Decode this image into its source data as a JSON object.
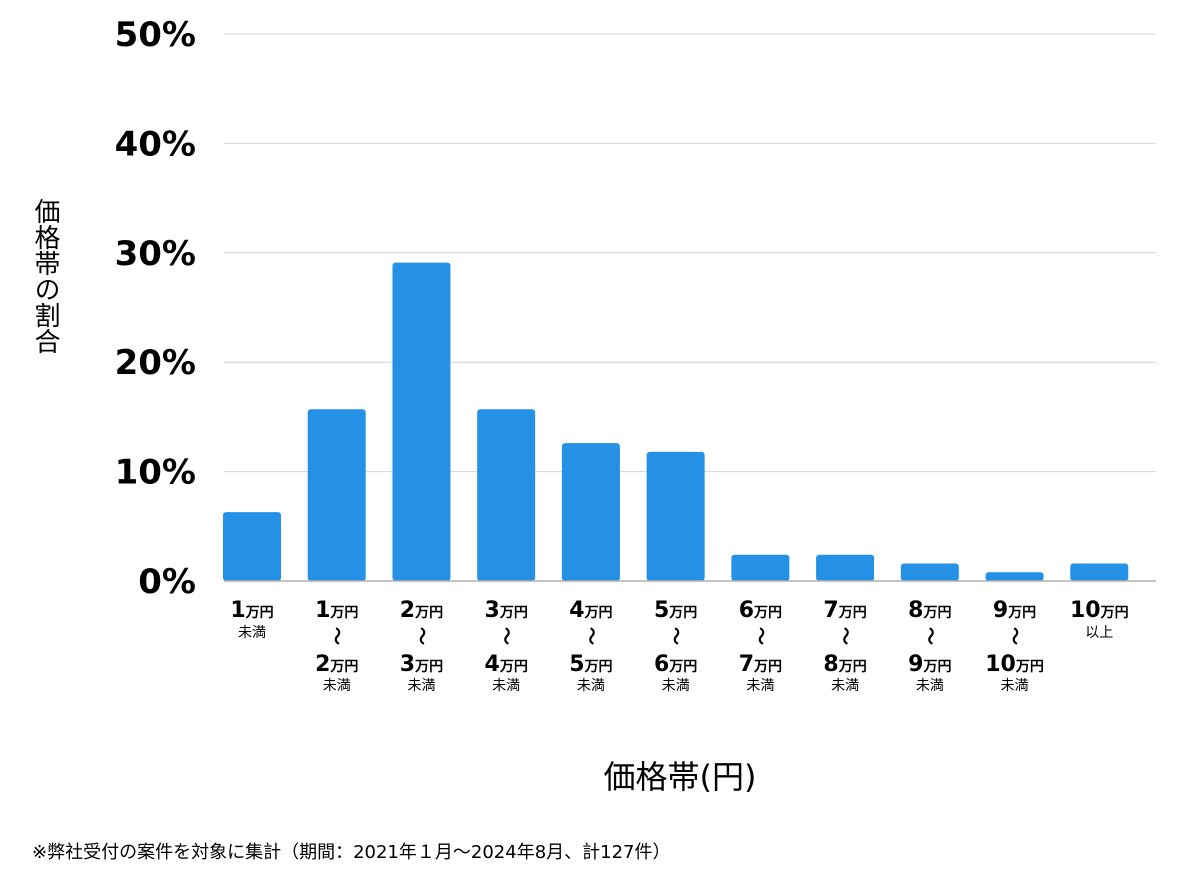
{
  "chart_data": {
    "type": "bar",
    "ylabel": "価格帯の割合",
    "xlabel": "価格帯(円)",
    "ylim": [
      0,
      50
    ],
    "yticks": [
      "0%",
      "10%",
      "20%",
      "30%",
      "40%",
      "50%"
    ],
    "ytick_values": [
      0,
      10,
      20,
      30,
      40,
      50
    ],
    "grid": true,
    "bar_color": "#2591e6",
    "categories": [
      {
        "from": "1",
        "from_unit": "万円",
        "to": "",
        "to_unit": "",
        "suffix": "未満"
      },
      {
        "from": "1",
        "from_unit": "万円",
        "to": "2",
        "to_unit": "万円",
        "suffix": "未満"
      },
      {
        "from": "2",
        "from_unit": "万円",
        "to": "3",
        "to_unit": "万円",
        "suffix": "未満"
      },
      {
        "from": "3",
        "from_unit": "万円",
        "to": "4",
        "to_unit": "万円",
        "suffix": "未満"
      },
      {
        "from": "4",
        "from_unit": "万円",
        "to": "5",
        "to_unit": "万円",
        "suffix": "未満"
      },
      {
        "from": "5",
        "from_unit": "万円",
        "to": "6",
        "to_unit": "万円",
        "suffix": "未満"
      },
      {
        "from": "6",
        "from_unit": "万円",
        "to": "7",
        "to_unit": "万円",
        "suffix": "未満"
      },
      {
        "from": "7",
        "from_unit": "万円",
        "to": "8",
        "to_unit": "万円",
        "suffix": "未満"
      },
      {
        "from": "8",
        "from_unit": "万円",
        "to": "9",
        "to_unit": "万円",
        "suffix": "未満"
      },
      {
        "from": "9",
        "from_unit": "万円",
        "to": "10",
        "to_unit": "万円",
        "suffix": "未満"
      },
      {
        "from": "10",
        "from_unit": "万円",
        "to": "",
        "to_unit": "",
        "suffix": "以上"
      }
    ],
    "tilde": "〜",
    "values": [
      6.3,
      15.7,
      29.1,
      15.7,
      12.6,
      11.8,
      2.4,
      2.4,
      1.6,
      0.8,
      1.6
    ]
  },
  "footnote": "※弊社受付の案件を対象に集計（期間：2021年１月〜2024年8月、計127件）"
}
